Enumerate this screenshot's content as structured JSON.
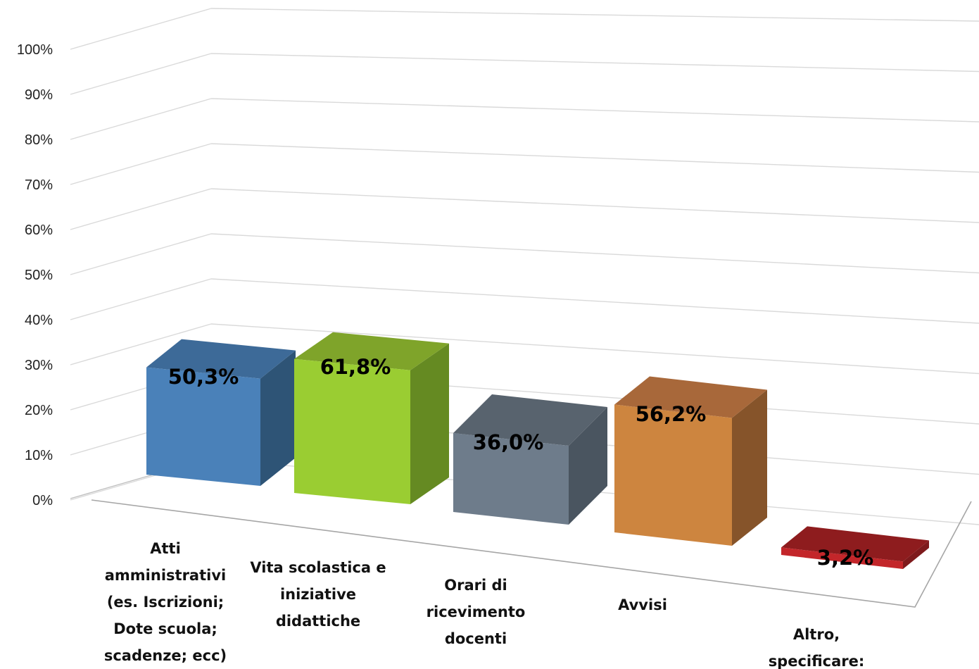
{
  "chart_data": {
    "type": "bar",
    "style": "3d-perspective",
    "categories": [
      [
        "Atti",
        "amministrativi",
        "(es. Iscrizioni;",
        "Dote scuola;",
        "scadenze; ecc)"
      ],
      [
        "Vita scolastica e",
        "iniziative",
        "didattiche"
      ],
      [
        "Orari di",
        "ricevimento",
        "docenti"
      ],
      [
        "Avvisi"
      ],
      [
        "Altro,",
        "specificare:"
      ]
    ],
    "values": [
      50.3,
      61.8,
      36.0,
      56.2,
      3.2
    ],
    "data_labels": [
      "50,3%",
      "61,8%",
      "36,0%",
      "56,2%",
      "3,2%"
    ],
    "y_ticks": [
      "0%",
      "10%",
      "20%",
      "30%",
      "40%",
      "50%",
      "60%",
      "70%",
      "80%",
      "90%",
      "100%"
    ],
    "ylim": [
      0,
      100
    ],
    "grid": true,
    "legend": "none",
    "colors": [
      {
        "front": "#4a81b9",
        "side": "#2e5476",
        "top": "#3d6a98"
      },
      {
        "front": "#9acd32",
        "side": "#658a22",
        "top": "#7fa42a"
      },
      {
        "front": "#6e7c8b",
        "side": "#4a5560",
        "top": "#58636e"
      },
      {
        "front": "#cd853f",
        "side": "#86542a",
        "top": "#a8683a"
      },
      {
        "front": "#c3262a",
        "side": "#7e1a1c",
        "top": "#8e1c1e"
      }
    ]
  }
}
